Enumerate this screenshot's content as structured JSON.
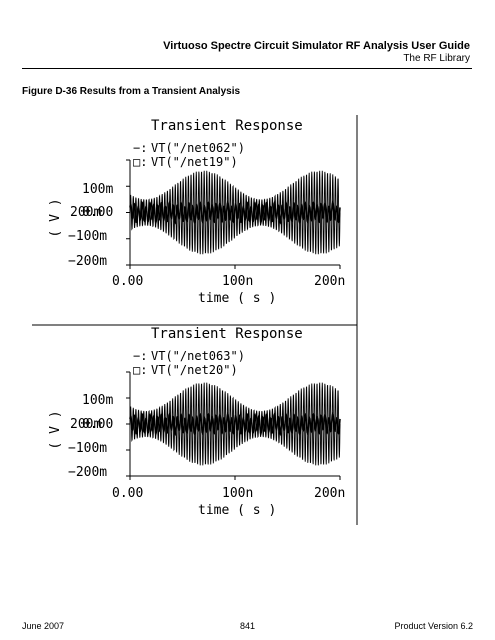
{
  "header": {
    "title": "Virtuoso Spectre Circuit Simulator RF Analysis User Guide",
    "subtitle": "The RF Library"
  },
  "figure": {
    "caption": "Figure D-36  Results from a Transient Analysis"
  },
  "plots": [
    {
      "title": "Transient Response",
      "legend": [
        "VT(\"/net062\")",
        "VT(\"/net19\")"
      ],
      "legend_markers": [
        "−:",
        "□:"
      ],
      "ylabel": "( V )",
      "xlabel": "time ( s )",
      "yticks": [
        "200m",
        "100m",
        "0.00",
        "−100m",
        "−200m"
      ],
      "xticks": [
        "0.00",
        "100n",
        "200n"
      ]
    },
    {
      "title": "Transient Response",
      "legend": [
        "VT(\"/net063\")",
        "VT(\"/net20\")"
      ],
      "legend_markers": [
        "−:",
        "□:"
      ],
      "ylabel": "( V )",
      "xlabel": "time ( s )",
      "yticks": [
        "200m",
        "100m",
        "0.00",
        "−100m",
        "−200m"
      ],
      "xticks": [
        "0.00",
        "100n",
        "200n"
      ]
    }
  ],
  "chart_data": [
    {
      "type": "line",
      "title": "Transient Response",
      "xlabel": "time ( s )",
      "ylabel": "( V )",
      "xlim": [
        0,
        2e-07
      ],
      "ylim": [
        -0.2,
        0.2
      ],
      "series": [
        {
          "name": "VT(\"/net062\")",
          "amplitude_envelope_peak": 0.16,
          "envelope_period": 1.1e-07,
          "min_amplitude": 0.05
        },
        {
          "name": "VT(\"/net19\")",
          "amplitude": 0.03
        }
      ]
    },
    {
      "type": "line",
      "title": "Transient Response",
      "xlabel": "time ( s )",
      "ylabel": "( V )",
      "xlim": [
        0,
        2e-07
      ],
      "ylim": [
        -0.2,
        0.2
      ],
      "series": [
        {
          "name": "VT(\"/net063\")",
          "amplitude_envelope_peak": 0.16,
          "envelope_period": 1.1e-07,
          "min_amplitude": 0.05
        },
        {
          "name": "VT(\"/net20\")",
          "amplitude": 0.03
        }
      ]
    }
  ],
  "footer": {
    "left": "June 2007",
    "center": "841",
    "right": "Product Version 6.2"
  }
}
